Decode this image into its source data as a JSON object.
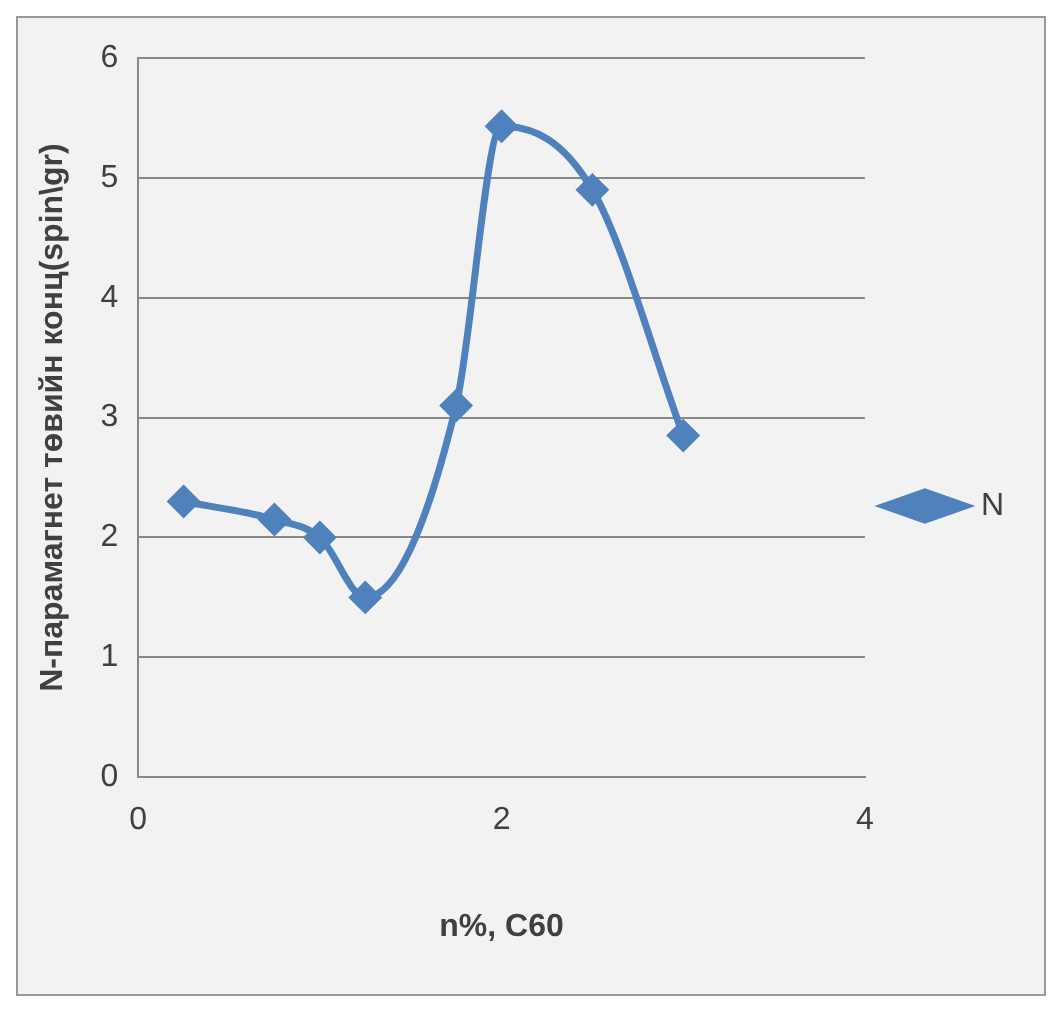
{
  "chart_data": {
    "type": "line",
    "xlabel": "n%, C60",
    "ylabel": "N-парамагнет төвийн конц(spin\\gr)",
    "xlim": [
      0,
      4
    ],
    "xticks": [
      0,
      2,
      4
    ],
    "ylim": [
      0,
      6
    ],
    "yticks": [
      0,
      1,
      2,
      3,
      4,
      5,
      6
    ],
    "grid": "y",
    "legend": "right",
    "marker": "diamond",
    "line_style": "solid",
    "series": [
      {
        "name": "N",
        "color": "#4f81bd",
        "x": [
          0.25,
          0.75,
          1.0,
          1.25,
          1.75,
          2.0,
          2.5,
          3.0
        ],
        "values": [
          2.3,
          2.15,
          2.0,
          1.5,
          3.1,
          5.43,
          4.9,
          2.85
        ]
      }
    ]
  }
}
